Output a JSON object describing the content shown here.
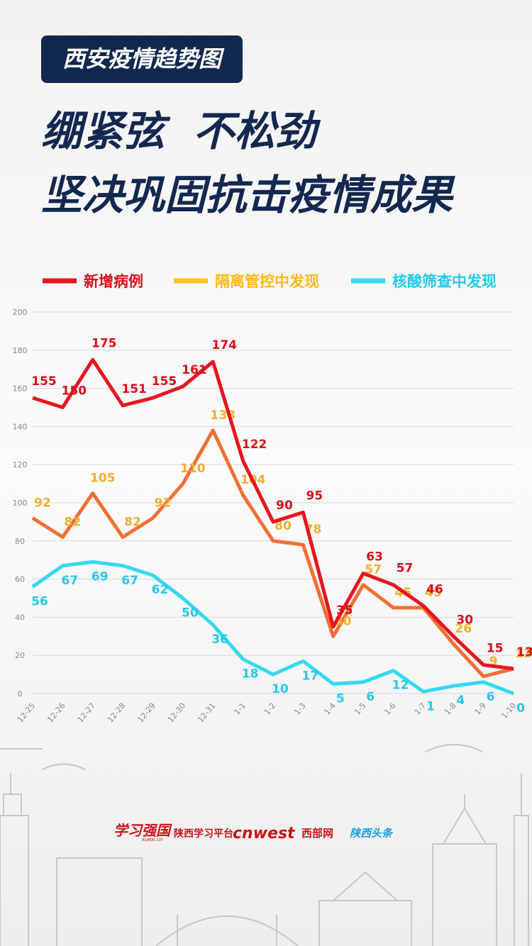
{
  "header": {
    "badge": "西安疫情趋势图",
    "headline": [
      "绷紧弦  不松劲",
      "坚决巩固抗击疫情成果"
    ]
  },
  "footer": {
    "logos": [
      "学习强国",
      "xuexi.cn",
      "陕西学习平台",
      "cnwest",
      "西部网",
      "陕西头条"
    ]
  },
  "chart_data": {
    "type": "line",
    "categories": [
      "12-25",
      "12-26",
      "12-27",
      "12-28",
      "12-29",
      "12-30",
      "12-31",
      "1-1",
      "1-2",
      "1-3",
      "1-4",
      "1-5",
      "1-6",
      "1-7",
      "1-8",
      "1-9",
      "1-10"
    ],
    "series": [
      {
        "name": "新增病例",
        "color": "#e8141e",
        "label_color": "#d8101a",
        "values": [
          155,
          150,
          175,
          151,
          155,
          161,
          174,
          122,
          90,
          95,
          35,
          63,
          57,
          46,
          30,
          15,
          13
        ]
      },
      {
        "name": "隔离管控中发现",
        "color": "#f07035",
        "label_color": "#f0b030",
        "values": [
          92,
          82,
          105,
          82,
          92,
          110,
          138,
          104,
          80,
          78,
          30,
          57,
          45,
          45,
          26,
          9,
          13
        ]
      },
      {
        "name": "核酸筛查中发现",
        "color": "#35d8f0",
        "label_color": "#25c8e8",
        "values": [
          56,
          67,
          69,
          67,
          62,
          50,
          36,
          18,
          10,
          17,
          5,
          6,
          12,
          1,
          4,
          6,
          0
        ]
      }
    ],
    "ylim": [
      0,
      200
    ],
    "yticks": [
      0,
      20,
      40,
      60,
      80,
      100,
      120,
      140,
      160,
      180,
      200
    ],
    "grid": true
  }
}
